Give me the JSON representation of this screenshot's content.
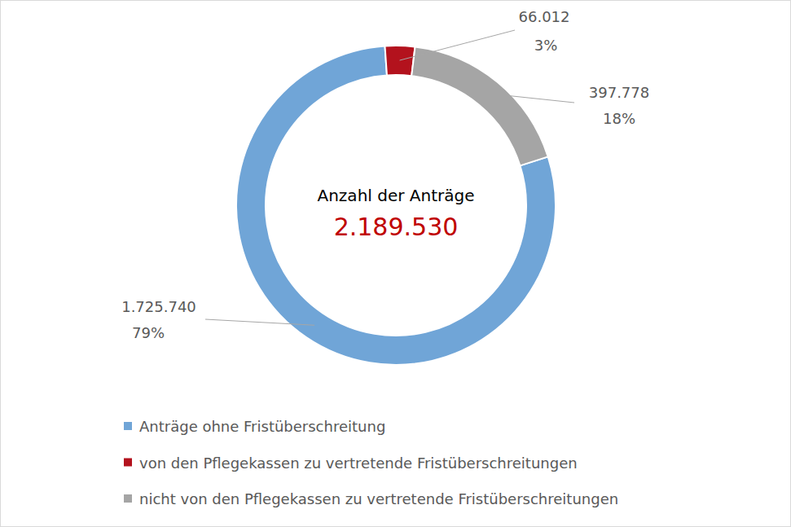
{
  "chart_data": {
    "type": "donut",
    "center_label": "Anzahl der Anträge",
    "total": 2189530,
    "total_label": "2.189.530",
    "categories": [
      "Anträge ohne Fristüberschreitung",
      "von den Pflegekassen zu vertretende Fristüberschreitungen",
      "nicht von den Pflegekassen zu vertretende Fristüberschreitungen"
    ],
    "values": [
      1725740,
      66012,
      397778
    ],
    "value_labels": [
      "1.725.740",
      "66.012",
      "397.778"
    ],
    "percentages": [
      79,
      3,
      18
    ],
    "percentage_labels": [
      "79%",
      "3%",
      "18%"
    ],
    "colors": [
      "#70a5d7",
      "#b3121d",
      "#a5a5a5"
    ],
    "data_labels": true,
    "legend": "bottom"
  }
}
